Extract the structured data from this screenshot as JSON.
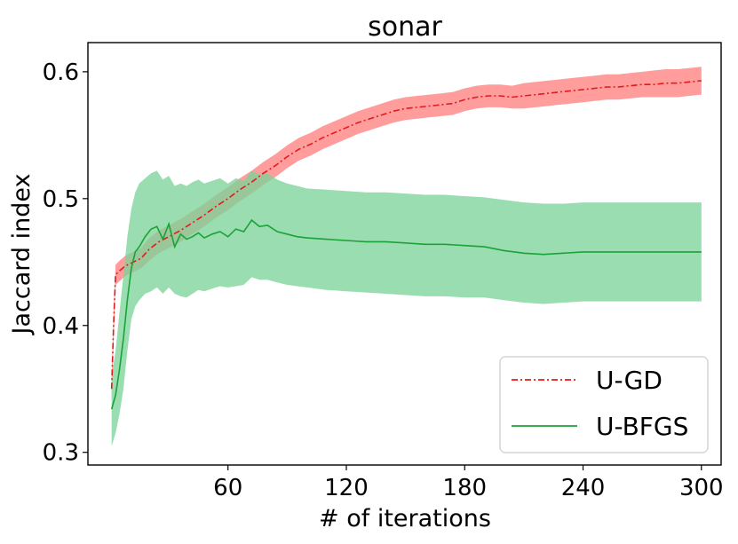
{
  "chart_data": {
    "type": "line",
    "title": "sonar",
    "xlabel": "# of iterations",
    "ylabel": "Jaccard index",
    "xlim": [
      -11,
      310
    ],
    "ylim": [
      0.29,
      0.623
    ],
    "xticks": [
      60,
      120,
      180,
      240,
      300
    ],
    "yticks": [
      0.3,
      0.4,
      0.5,
      0.6
    ],
    "xtick_labels": [
      "60",
      "120",
      "180",
      "240",
      "300"
    ],
    "ytick_labels": [
      "0.3",
      "0.4",
      "0.5",
      "0.6"
    ],
    "grid": false,
    "legend_position": "bottom-right",
    "series": [
      {
        "name": "U-GD",
        "color": "#e31a1c",
        "band_color": "#ff8c8c",
        "line_style": "dashdot",
        "x": [
          1,
          2,
          3,
          5,
          8,
          12,
          16,
          20,
          25,
          30,
          36,
          42,
          48,
          54,
          60,
          66,
          72,
          78,
          84,
          90,
          96,
          102,
          108,
          114,
          120,
          126,
          132,
          138,
          144,
          150,
          156,
          162,
          168,
          174,
          180,
          186,
          192,
          198,
          204,
          210,
          216,
          222,
          228,
          234,
          240,
          246,
          252,
          258,
          264,
          270,
          276,
          282,
          288,
          294,
          300
        ],
        "y": [
          0.35,
          0.4,
          0.44,
          0.443,
          0.447,
          0.45,
          0.453,
          0.46,
          0.466,
          0.47,
          0.475,
          0.481,
          0.487,
          0.494,
          0.5,
          0.507,
          0.513,
          0.52,
          0.526,
          0.533,
          0.539,
          0.543,
          0.548,
          0.552,
          0.556,
          0.56,
          0.563,
          0.566,
          0.569,
          0.571,
          0.572,
          0.573,
          0.574,
          0.575,
          0.578,
          0.58,
          0.581,
          0.581,
          0.58,
          0.581,
          0.582,
          0.583,
          0.584,
          0.585,
          0.586,
          0.587,
          0.588,
          0.588,
          0.589,
          0.59,
          0.59,
          0.591,
          0.591,
          0.592,
          0.593
        ],
        "lower": [
          0.34,
          0.39,
          0.432,
          0.435,
          0.439,
          0.442,
          0.445,
          0.451,
          0.457,
          0.461,
          0.466,
          0.472,
          0.478,
          0.485,
          0.491,
          0.498,
          0.504,
          0.511,
          0.517,
          0.524,
          0.53,
          0.534,
          0.539,
          0.543,
          0.547,
          0.551,
          0.554,
          0.557,
          0.56,
          0.562,
          0.563,
          0.564,
          0.565,
          0.566,
          0.569,
          0.571,
          0.572,
          0.572,
          0.571,
          0.571,
          0.572,
          0.573,
          0.574,
          0.575,
          0.576,
          0.577,
          0.578,
          0.578,
          0.579,
          0.58,
          0.58,
          0.58,
          0.58,
          0.581,
          0.582
        ],
        "upper": [
          0.36,
          0.41,
          0.448,
          0.451,
          0.455,
          0.458,
          0.461,
          0.469,
          0.475,
          0.479,
          0.484,
          0.49,
          0.496,
          0.503,
          0.509,
          0.516,
          0.522,
          0.529,
          0.535,
          0.542,
          0.548,
          0.552,
          0.557,
          0.561,
          0.565,
          0.569,
          0.572,
          0.575,
          0.578,
          0.58,
          0.581,
          0.582,
          0.583,
          0.584,
          0.587,
          0.589,
          0.59,
          0.59,
          0.589,
          0.591,
          0.592,
          0.593,
          0.594,
          0.595,
          0.596,
          0.597,
          0.598,
          0.598,
          0.599,
          0.6,
          0.601,
          0.602,
          0.602,
          0.603,
          0.604
        ]
      },
      {
        "name": "U-BFGS",
        "color": "#1aa336",
        "band_color": "#7ed49a",
        "line_style": "solid",
        "x": [
          1,
          3,
          5,
          7,
          9,
          11,
          13,
          15,
          18,
          21,
          24,
          27,
          30,
          33,
          36,
          39,
          42,
          45,
          48,
          52,
          56,
          60,
          64,
          68,
          72,
          76,
          80,
          85,
          90,
          95,
          100,
          110,
          120,
          130,
          140,
          150,
          160,
          170,
          180,
          190,
          200,
          210,
          220,
          230,
          240,
          250,
          260,
          270,
          280,
          290,
          300
        ],
        "y": [
          0.334,
          0.345,
          0.365,
          0.39,
          0.42,
          0.445,
          0.458,
          0.462,
          0.47,
          0.476,
          0.478,
          0.468,
          0.48,
          0.462,
          0.472,
          0.468,
          0.47,
          0.473,
          0.469,
          0.472,
          0.474,
          0.47,
          0.476,
          0.474,
          0.483,
          0.478,
          0.479,
          0.474,
          0.472,
          0.47,
          0.469,
          0.468,
          0.467,
          0.466,
          0.466,
          0.465,
          0.464,
          0.464,
          0.463,
          0.462,
          0.459,
          0.457,
          0.456,
          0.457,
          0.458,
          0.458,
          0.458,
          0.458,
          0.458,
          0.458,
          0.458
        ],
        "lower": [
          0.305,
          0.315,
          0.33,
          0.35,
          0.38,
          0.405,
          0.415,
          0.42,
          0.425,
          0.427,
          0.43,
          0.425,
          0.43,
          0.425,
          0.423,
          0.422,
          0.425,
          0.428,
          0.427,
          0.429,
          0.431,
          0.43,
          0.431,
          0.432,
          0.438,
          0.436,
          0.436,
          0.434,
          0.432,
          0.431,
          0.43,
          0.428,
          0.427,
          0.426,
          0.425,
          0.424,
          0.423,
          0.423,
          0.422,
          0.422,
          0.42,
          0.418,
          0.417,
          0.418,
          0.419,
          0.419,
          0.419,
          0.419,
          0.419,
          0.419,
          0.419
        ],
        "upper": [
          0.36,
          0.38,
          0.41,
          0.44,
          0.47,
          0.492,
          0.505,
          0.512,
          0.516,
          0.52,
          0.522,
          0.515,
          0.518,
          0.51,
          0.512,
          0.51,
          0.513,
          0.515,
          0.512,
          0.514,
          0.516,
          0.512,
          0.516,
          0.514,
          0.522,
          0.519,
          0.52,
          0.515,
          0.512,
          0.51,
          0.508,
          0.507,
          0.506,
          0.505,
          0.505,
          0.504,
          0.503,
          0.503,
          0.502,
          0.501,
          0.499,
          0.497,
          0.496,
          0.496,
          0.497,
          0.497,
          0.497,
          0.497,
          0.497,
          0.497,
          0.497
        ]
      }
    ]
  }
}
